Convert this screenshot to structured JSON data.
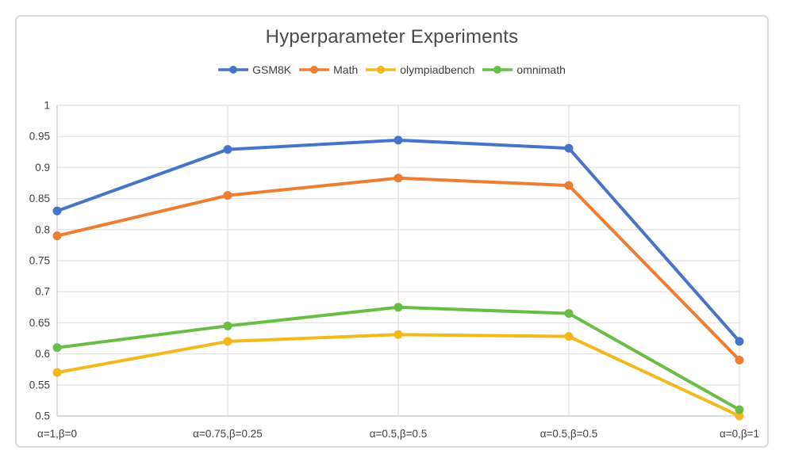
{
  "frame": {
    "background": "#ffffff",
    "border_color": "#d9d9d9"
  },
  "chart_data": {
    "type": "line",
    "title": "Hyperparameter Experiments",
    "xlabel": "",
    "ylabel": "",
    "categories": [
      "α=1,β=0",
      "α=0.75,β=0.25",
      "α=0.5,β=0.5",
      "α=0.5,β=0.5",
      "α=0,β=1"
    ],
    "series": [
      {
        "name": "GSM8K",
        "color": "#4674c9",
        "values": [
          0.83,
          0.929,
          0.944,
          0.931,
          0.62
        ]
      },
      {
        "name": "Math",
        "color": "#ed7d31",
        "values": [
          0.79,
          0.855,
          0.883,
          0.871,
          0.59
        ]
      },
      {
        "name": "olympiadbench",
        "color": "#f2b81c",
        "values": [
          0.57,
          0.62,
          0.631,
          0.628,
          0.5
        ]
      },
      {
        "name": "omnimath",
        "color": "#69bd45",
        "values": [
          0.61,
          0.645,
          0.675,
          0.665,
          0.51
        ]
      }
    ],
    "y_axis": {
      "min": 0.5,
      "max": 1.0,
      "step": 0.05,
      "tick_labels": [
        "1",
        "0.95",
        "0.9",
        "0.85",
        "0.8",
        "0.75",
        "0.7",
        "0.65",
        "0.6",
        "0.55",
        "0.5"
      ]
    },
    "legend_position": "top-center",
    "grid": true,
    "grid_color": "#e3e3e3",
    "axis_color": "#cfcfcf",
    "tick_text_color": "#404040",
    "marker": "circle"
  }
}
